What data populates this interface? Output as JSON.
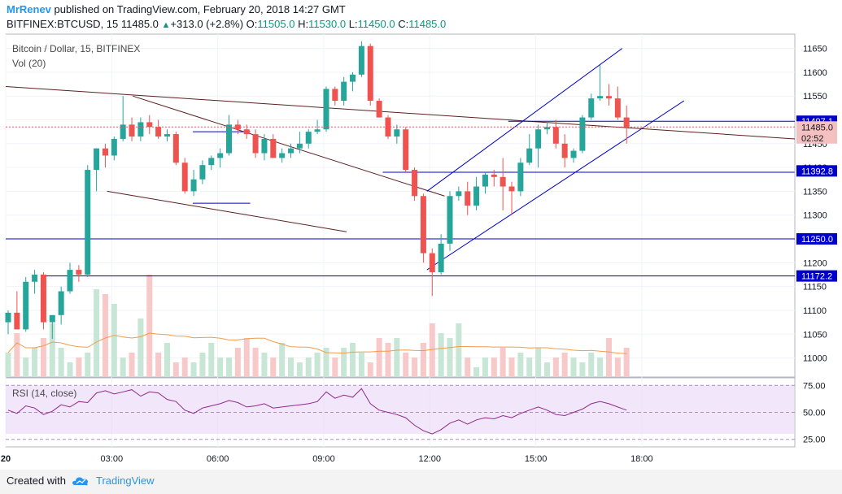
{
  "header": {
    "author": "MrRenev",
    "published": "published on TradingView.com, February 20, 2018 14:27 GMT",
    "symbol": "BITFINEX:BTCUSD, 15",
    "last": "11485.0",
    "change_arrow": "▲",
    "change": "+313.0 (+2.8%)",
    "o_label": "O:",
    "o_val": "11505.0",
    "h_label": "H:",
    "h_val": "11530.0",
    "l_label": "L:",
    "l_val": "11450.0",
    "c_label": "C:",
    "c_val": "11485.0"
  },
  "legend": {
    "title": "Bitcoin / Dollar, 15, BITFINEX",
    "vol": "Vol (20)",
    "rsi": "RSI (14, close)"
  },
  "footer": {
    "created": "Created with",
    "brand": "TradingView",
    "logo_icon": "tradingview-cloud-icon"
  },
  "colors": {
    "up": "#26a69a",
    "down": "#ef5350",
    "accent_blue": "#2196f3",
    "level_line": "#0000cc",
    "trend_line": "#5d1f1f",
    "ma_vol": "#f39c4a",
    "rsi_line": "#8e2a8e",
    "rsi_band": "#e8d1f5"
  },
  "chart_data": [
    {
      "type": "candlestick",
      "title": "Bitcoin / Dollar, 15, BITFINEX",
      "x_ticks": [
        "20",
        "03:00",
        "06:00",
        "09:00",
        "12:00",
        "15:00",
        "18:00"
      ],
      "x_tick_bars": [
        0,
        12,
        24,
        36,
        48,
        60,
        72
      ],
      "y_ticks": [
        11000,
        11050,
        11100,
        11150,
        11200,
        11250,
        11300,
        11350,
        11400,
        11450,
        11500,
        11550,
        11600,
        11650
      ],
      "ylim": [
        10960,
        11680
      ],
      "price_labels": [
        {
          "text": "11497.1",
          "value": 11497.1,
          "style": "level"
        },
        {
          "text": "11485.0",
          "value": 11485.0,
          "style": "last"
        },
        {
          "text": "02:52",
          "value": 11462,
          "style": "timer"
        },
        {
          "text": "11392.8",
          "value": 11392.8,
          "style": "level"
        },
        {
          "text": "11250.0",
          "value": 11250.0,
          "style": "level"
        },
        {
          "text": "11172.2",
          "value": 11172.2,
          "style": "level"
        }
      ],
      "candles": [
        {
          "o": 11075,
          "h": 11100,
          "l": 11050,
          "c": 11095
        },
        {
          "o": 11095,
          "h": 11140,
          "l": 11060,
          "c": 11060
        },
        {
          "o": 11060,
          "h": 11170,
          "l": 11055,
          "c": 11160
        },
        {
          "o": 11160,
          "h": 11185,
          "l": 11135,
          "c": 11175
        },
        {
          "o": 11175,
          "h": 11180,
          "l": 11060,
          "c": 11075
        },
        {
          "o": 11075,
          "h": 11090,
          "l": 11040,
          "c": 11090
        },
        {
          "o": 11090,
          "h": 11150,
          "l": 11070,
          "c": 11140
        },
        {
          "o": 11140,
          "h": 11200,
          "l": 11135,
          "c": 11185
        },
        {
          "o": 11185,
          "h": 11195,
          "l": 11160,
          "c": 11175
        },
        {
          "o": 11175,
          "h": 11405,
          "l": 11170,
          "c": 11395
        },
        {
          "o": 11395,
          "h": 11440,
          "l": 11350,
          "c": 11440
        },
        {
          "o": 11440,
          "h": 11450,
          "l": 11400,
          "c": 11425
        },
        {
          "o": 11425,
          "h": 11465,
          "l": 11415,
          "c": 11460
        },
        {
          "o": 11460,
          "h": 11550,
          "l": 11455,
          "c": 11490
        },
        {
          "o": 11490,
          "h": 11505,
          "l": 11455,
          "c": 11465
        },
        {
          "o": 11465,
          "h": 11505,
          "l": 11455,
          "c": 11495
        },
        {
          "o": 11495,
          "h": 11510,
          "l": 11470,
          "c": 11485
        },
        {
          "o": 11485,
          "h": 11500,
          "l": 11460,
          "c": 11465
        },
        {
          "o": 11465,
          "h": 11480,
          "l": 11455,
          "c": 11470
        },
        {
          "o": 11470,
          "h": 11475,
          "l": 11405,
          "c": 11410
        },
        {
          "o": 11410,
          "h": 11420,
          "l": 11345,
          "c": 11350
        },
        {
          "o": 11350,
          "h": 11395,
          "l": 11340,
          "c": 11375
        },
        {
          "o": 11375,
          "h": 11415,
          "l": 11365,
          "c": 11405
        },
        {
          "o": 11405,
          "h": 11425,
          "l": 11395,
          "c": 11420
        },
        {
          "o": 11420,
          "h": 11440,
          "l": 11400,
          "c": 11430
        },
        {
          "o": 11430,
          "h": 11510,
          "l": 11425,
          "c": 11490
        },
        {
          "o": 11490,
          "h": 11500,
          "l": 11470,
          "c": 11480
        },
        {
          "o": 11480,
          "h": 11490,
          "l": 11460,
          "c": 11470
        },
        {
          "o": 11470,
          "h": 11480,
          "l": 11420,
          "c": 11430
        },
        {
          "o": 11430,
          "h": 11470,
          "l": 11415,
          "c": 11460
        },
        {
          "o": 11460,
          "h": 11470,
          "l": 11420,
          "c": 11420
        },
        {
          "o": 11420,
          "h": 11440,
          "l": 11410,
          "c": 11430
        },
        {
          "o": 11430,
          "h": 11450,
          "l": 11420,
          "c": 11440
        },
        {
          "o": 11440,
          "h": 11475,
          "l": 11430,
          "c": 11450
        },
        {
          "o": 11450,
          "h": 11480,
          "l": 11440,
          "c": 11475
        },
        {
          "o": 11475,
          "h": 11500,
          "l": 11470,
          "c": 11480
        },
        {
          "o": 11480,
          "h": 11570,
          "l": 11475,
          "c": 11565
        },
        {
          "o": 11565,
          "h": 11570,
          "l": 11530,
          "c": 11540
        },
        {
          "o": 11540,
          "h": 11590,
          "l": 11530,
          "c": 11580
        },
        {
          "o": 11580,
          "h": 11600,
          "l": 11560,
          "c": 11595
        },
        {
          "o": 11595,
          "h": 11665,
          "l": 11590,
          "c": 11655
        },
        {
          "o": 11655,
          "h": 11660,
          "l": 11530,
          "c": 11540
        },
        {
          "o": 11540,
          "h": 11545,
          "l": 11505,
          "c": 11505
        },
        {
          "o": 11505,
          "h": 11510,
          "l": 11460,
          "c": 11465
        },
        {
          "o": 11465,
          "h": 11490,
          "l": 11450,
          "c": 11480
        },
        {
          "o": 11480,
          "h": 11485,
          "l": 11390,
          "c": 11395
        },
        {
          "o": 11395,
          "h": 11400,
          "l": 11330,
          "c": 11340
        },
        {
          "o": 11340,
          "h": 11345,
          "l": 11200,
          "c": 11220
        },
        {
          "o": 11220,
          "h": 11230,
          "l": 11130,
          "c": 11180
        },
        {
          "o": 11180,
          "h": 11260,
          "l": 11175,
          "c": 11240
        },
        {
          "o": 11240,
          "h": 11350,
          "l": 11225,
          "c": 11340
        },
        {
          "o": 11340,
          "h": 11360,
          "l": 11330,
          "c": 11350
        },
        {
          "o": 11350,
          "h": 11370,
          "l": 11300,
          "c": 11320
        },
        {
          "o": 11320,
          "h": 11380,
          "l": 11310,
          "c": 11360
        },
        {
          "o": 11360,
          "h": 11390,
          "l": 11345,
          "c": 11385
        },
        {
          "o": 11385,
          "h": 11395,
          "l": 11360,
          "c": 11380
        },
        {
          "o": 11380,
          "h": 11420,
          "l": 11310,
          "c": 11360
        },
        {
          "o": 11360,
          "h": 11370,
          "l": 11300,
          "c": 11350
        },
        {
          "o": 11350,
          "h": 11420,
          "l": 11340,
          "c": 11410
        },
        {
          "o": 11410,
          "h": 11470,
          "l": 11405,
          "c": 11440
        },
        {
          "o": 11440,
          "h": 11490,
          "l": 11400,
          "c": 11480
        },
        {
          "o": 11480,
          "h": 11495,
          "l": 11470,
          "c": 11485
        },
        {
          "o": 11485,
          "h": 11500,
          "l": 11440,
          "c": 11450
        },
        {
          "o": 11450,
          "h": 11470,
          "l": 11400,
          "c": 11420
        },
        {
          "o": 11420,
          "h": 11440,
          "l": 11410,
          "c": 11435
        },
        {
          "o": 11435,
          "h": 11510,
          "l": 11430,
          "c": 11505
        },
        {
          "o": 11505,
          "h": 11555,
          "l": 11500,
          "c": 11545
        },
        {
          "o": 11545,
          "h": 11615,
          "l": 11540,
          "c": 11550
        },
        {
          "o": 11550,
          "h": 11575,
          "l": 11530,
          "c": 11545
        },
        {
          "o": 11545,
          "h": 11570,
          "l": 11500,
          "c": 11505
        },
        {
          "o": 11505,
          "h": 11530,
          "l": 11450,
          "c": 11485
        }
      ],
      "volume": [
        25,
        45,
        20,
        30,
        40,
        55,
        30,
        15,
        20,
        25,
        90,
        85,
        75,
        20,
        25,
        60,
        105,
        25,
        35,
        15,
        20,
        15,
        25,
        35,
        20,
        20,
        30,
        40,
        30,
        25,
        20,
        35,
        20,
        15,
        20,
        25,
        30,
        20,
        30,
        35,
        25,
        15,
        40,
        35,
        40,
        25,
        20,
        35,
        55,
        45,
        40,
        55,
        20,
        10,
        20,
        20,
        30,
        20,
        25,
        20,
        30,
        15,
        20,
        25,
        20,
        15,
        25,
        20,
        40,
        20,
        30
      ]
    },
    {
      "type": "line",
      "title": "RSI (14, close)",
      "y_ticks": [
        25,
        50,
        75
      ],
      "ylim": [
        18,
        82
      ],
      "band": [
        30,
        70
      ],
      "values": [
        52,
        49,
        56,
        54,
        48,
        51,
        57,
        55,
        60,
        59,
        68,
        70,
        67,
        69,
        71,
        65,
        69,
        68,
        62,
        60,
        52,
        49,
        54,
        56,
        58,
        61,
        59,
        55,
        56,
        58,
        54,
        55,
        56,
        57,
        58,
        60,
        69,
        63,
        66,
        64,
        72,
        58,
        52,
        50,
        48,
        45,
        38,
        33,
        30,
        34,
        40,
        43,
        39,
        43,
        45,
        44,
        47,
        45,
        49,
        52,
        55,
        52,
        48,
        47,
        50,
        53,
        58,
        60,
        58,
        55,
        52
      ]
    }
  ]
}
